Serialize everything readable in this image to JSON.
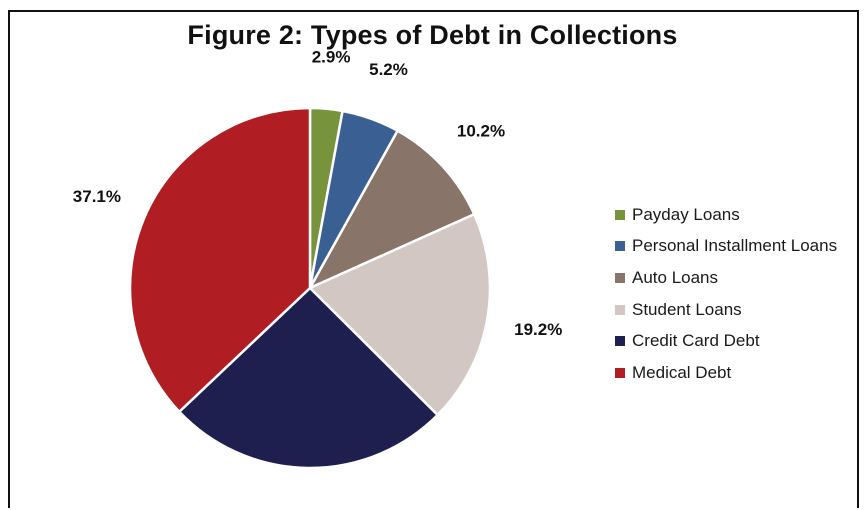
{
  "chart_data": {
    "type": "pie",
    "title": "Figure 2: Types of Debt in Collections",
    "start_angle_deg": 0,
    "direction": "clockwise",
    "legend_position": "right",
    "slices": [
      {
        "label": "Payday Loans",
        "value": 2.9,
        "display": "2.9%",
        "color": "#77933c"
      },
      {
        "label": "Personal Installment Loans",
        "value": 5.2,
        "display": "5.2%",
        "color": "#3a5f93"
      },
      {
        "label": "Auto Loans",
        "value": 10.2,
        "display": "10.2%",
        "color": "#887468"
      },
      {
        "label": "Student Loans",
        "value": 19.2,
        "display": "19.2%",
        "color": "#d2c7c3"
      },
      {
        "label": "Credit Card Debt",
        "value": 25.5,
        "display": "25.5%",
        "color": "#1e1f4f"
      },
      {
        "label": "Medical Debt",
        "value": 37.1,
        "display": "37.1%",
        "color": "#b01e23"
      }
    ]
  }
}
